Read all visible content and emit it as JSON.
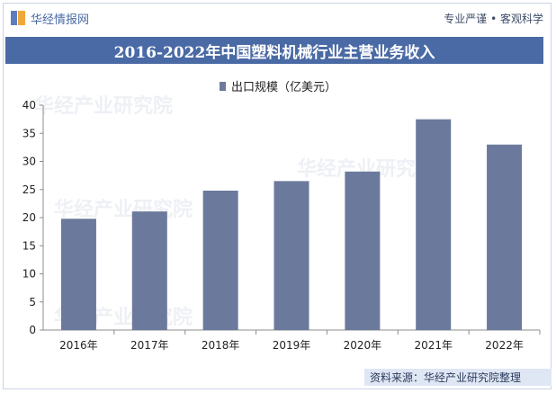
{
  "header": {
    "brand_name": "华经情报网",
    "tagline": "专业严谨 • 客观科学"
  },
  "title_bar": {
    "title": "2016-2022年中国塑料机械行业主营业务收入"
  },
  "footer": {
    "source": "资料来源：华经产业研究院整理"
  },
  "watermark": {
    "text": "华经产业研究院"
  },
  "colors": {
    "bar": "#6b7a9c",
    "title_bg": "#4a6aa5",
    "brand": "#4a6aa5"
  },
  "chart_data": {
    "type": "bar",
    "categories": [
      "2016年",
      "2017年",
      "2018年",
      "2019年",
      "2020年",
      "2021年",
      "2022年"
    ],
    "series": [
      {
        "name": "出口规模（亿美元）",
        "values": [
          19.8,
          21.1,
          24.8,
          26.5,
          28.2,
          37.5,
          33.0
        ]
      }
    ],
    "title": "2016-2022年中国塑料机械行业主营业务收入",
    "ylim": [
      0,
      40
    ],
    "yticks": [
      0,
      5,
      10,
      15,
      20,
      25,
      30,
      35,
      40
    ],
    "grid": false,
    "legend_position": "top-center"
  }
}
